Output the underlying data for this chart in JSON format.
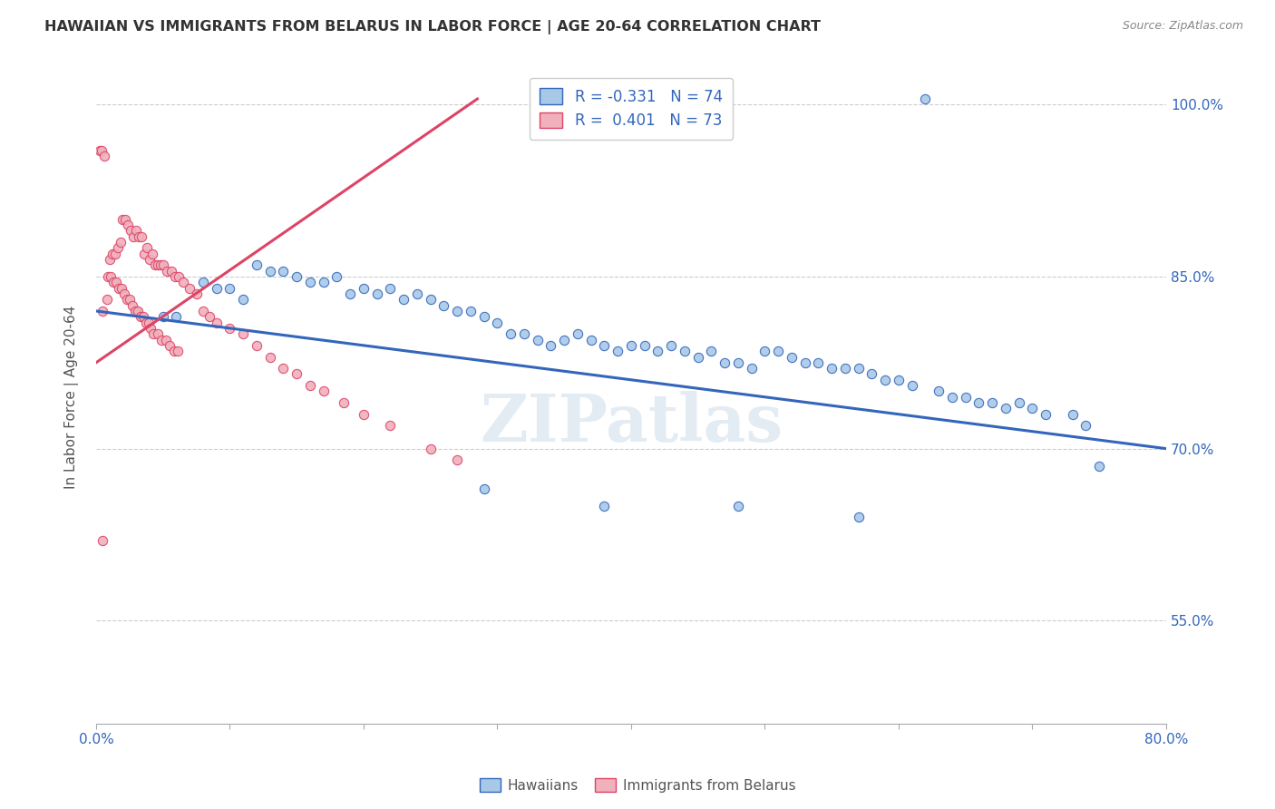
{
  "title": "HAWAIIAN VS IMMIGRANTS FROM BELARUS IN LABOR FORCE | AGE 20-64 CORRELATION CHART",
  "source": "Source: ZipAtlas.com",
  "ylabel": "In Labor Force | Age 20-64",
  "xlim": [
    0.0,
    0.8
  ],
  "ylim": [
    0.46,
    1.03
  ],
  "xticks": [
    0.0,
    0.1,
    0.2,
    0.3,
    0.4,
    0.5,
    0.6,
    0.7,
    0.8
  ],
  "xticklabels": [
    "0.0%",
    "",
    "",
    "",
    "",
    "",
    "",
    "",
    "80.0%"
  ],
  "yticks_right": [
    0.55,
    0.7,
    0.85,
    1.0
  ],
  "yticklabels_right": [
    "55.0%",
    "70.0%",
    "85.0%",
    "100.0%"
  ],
  "blue_color": "#a8c8e8",
  "pink_color": "#f0b0bc",
  "blue_line_color": "#3366bb",
  "pink_line_color": "#dd4466",
  "legend_r_blue": "R = -0.331",
  "legend_n_blue": "N = 74",
  "legend_r_pink": "R =  0.401",
  "legend_n_pink": "N = 73",
  "hawaiians_label": "Hawaiians",
  "belarus_label": "Immigrants from Belarus",
  "watermark": "ZIPatlas",
  "blue_trend_x": [
    0.0,
    0.8
  ],
  "blue_trend_y": [
    0.82,
    0.7
  ],
  "pink_trend_x": [
    0.0,
    0.285
  ],
  "pink_trend_y": [
    0.775,
    1.005
  ],
  "blue_scatter_x": [
    0.62,
    0.03,
    0.05,
    0.06,
    0.08,
    0.09,
    0.1,
    0.11,
    0.12,
    0.13,
    0.14,
    0.15,
    0.16,
    0.17,
    0.18,
    0.19,
    0.2,
    0.21,
    0.22,
    0.23,
    0.24,
    0.25,
    0.26,
    0.27,
    0.28,
    0.29,
    0.3,
    0.31,
    0.32,
    0.33,
    0.34,
    0.35,
    0.36,
    0.37,
    0.38,
    0.39,
    0.4,
    0.41,
    0.42,
    0.43,
    0.44,
    0.45,
    0.46,
    0.47,
    0.48,
    0.49,
    0.5,
    0.51,
    0.52,
    0.53,
    0.54,
    0.55,
    0.56,
    0.57,
    0.58,
    0.59,
    0.6,
    0.61,
    0.63,
    0.64,
    0.65,
    0.66,
    0.67,
    0.68,
    0.69,
    0.7,
    0.71,
    0.73,
    0.74,
    0.75,
    0.29,
    0.38,
    0.48,
    0.57
  ],
  "blue_scatter_y": [
    1.005,
    0.82,
    0.815,
    0.815,
    0.845,
    0.84,
    0.84,
    0.83,
    0.86,
    0.855,
    0.855,
    0.85,
    0.845,
    0.845,
    0.85,
    0.835,
    0.84,
    0.835,
    0.84,
    0.83,
    0.835,
    0.83,
    0.825,
    0.82,
    0.82,
    0.815,
    0.81,
    0.8,
    0.8,
    0.795,
    0.79,
    0.795,
    0.8,
    0.795,
    0.79,
    0.785,
    0.79,
    0.79,
    0.785,
    0.79,
    0.785,
    0.78,
    0.785,
    0.775,
    0.775,
    0.77,
    0.785,
    0.785,
    0.78,
    0.775,
    0.775,
    0.77,
    0.77,
    0.77,
    0.765,
    0.76,
    0.76,
    0.755,
    0.75,
    0.745,
    0.745,
    0.74,
    0.74,
    0.735,
    0.74,
    0.735,
    0.73,
    0.73,
    0.72,
    0.685,
    0.665,
    0.65,
    0.65,
    0.64
  ],
  "pink_scatter_x": [
    0.005,
    0.008,
    0.01,
    0.012,
    0.014,
    0.016,
    0.018,
    0.02,
    0.022,
    0.024,
    0.026,
    0.028,
    0.03,
    0.032,
    0.034,
    0.036,
    0.038,
    0.04,
    0.042,
    0.044,
    0.046,
    0.048,
    0.05,
    0.053,
    0.056,
    0.059,
    0.062,
    0.065,
    0.07,
    0.075,
    0.08,
    0.085,
    0.09,
    0.1,
    0.11,
    0.12,
    0.13,
    0.14,
    0.15,
    0.16,
    0.17,
    0.185,
    0.2,
    0.22,
    0.25,
    0.27,
    0.003,
    0.004,
    0.006,
    0.009,
    0.011,
    0.013,
    0.015,
    0.017,
    0.019,
    0.021,
    0.023,
    0.025,
    0.027,
    0.029,
    0.031,
    0.033,
    0.035,
    0.037,
    0.039,
    0.041,
    0.043,
    0.046,
    0.049,
    0.052,
    0.055,
    0.058,
    0.061
  ],
  "pink_scatter_y": [
    0.82,
    0.83,
    0.865,
    0.87,
    0.87,
    0.875,
    0.88,
    0.9,
    0.9,
    0.895,
    0.89,
    0.885,
    0.89,
    0.885,
    0.885,
    0.87,
    0.875,
    0.865,
    0.87,
    0.86,
    0.86,
    0.86,
    0.86,
    0.855,
    0.855,
    0.85,
    0.85,
    0.845,
    0.84,
    0.835,
    0.82,
    0.815,
    0.81,
    0.805,
    0.8,
    0.79,
    0.78,
    0.77,
    0.765,
    0.755,
    0.75,
    0.74,
    0.73,
    0.72,
    0.7,
    0.69,
    0.96,
    0.96,
    0.955,
    0.85,
    0.85,
    0.845,
    0.845,
    0.84,
    0.84,
    0.835,
    0.83,
    0.83,
    0.825,
    0.82,
    0.82,
    0.815,
    0.815,
    0.81,
    0.81,
    0.805,
    0.8,
    0.8,
    0.795,
    0.795,
    0.79,
    0.785,
    0.785
  ],
  "pink_outlier_x": [
    0.005
  ],
  "pink_outlier_y": [
    0.62
  ]
}
